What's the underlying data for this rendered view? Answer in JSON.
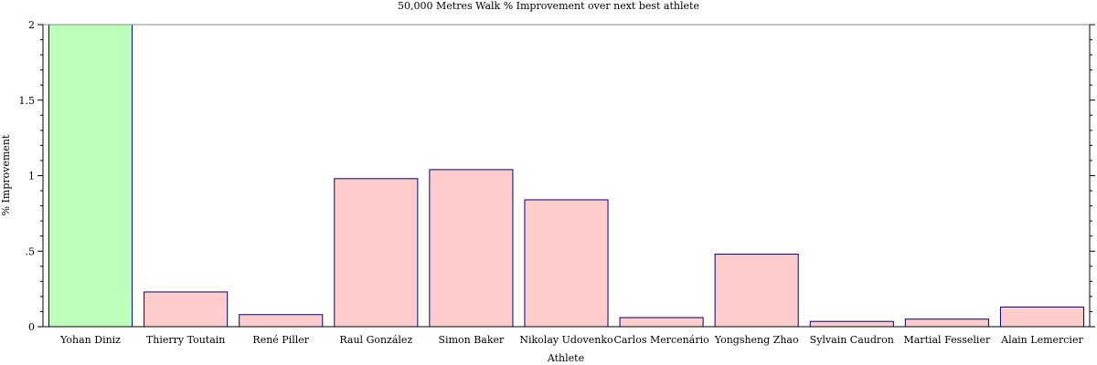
{
  "chart_data": {
    "type": "bar",
    "title": "50,000 Metres Walk % Improvement over next best athlete",
    "xlabel": "Athlete",
    "ylabel": "% Improvement",
    "ylim": [
      0,
      2
    ],
    "yticks": [
      {
        "value": 0,
        "label": "0"
      },
      {
        "value": 0.5,
        "label": ".5"
      },
      {
        "value": 1,
        "label": "1"
      },
      {
        "value": 1.5,
        "label": "1.5"
      },
      {
        "value": 2,
        "label": "2"
      }
    ],
    "categories": [
      "Yohan Diniz",
      "Thierry Toutain",
      "René Piller",
      "Raul González",
      "Simon Baker",
      "Nikolay Udovenko",
      "Carlos Mercenário",
      "Yongsheng Zhao",
      "Sylvain Caudron",
      "Martial Fesselier",
      "Alain Lemercier"
    ],
    "values": [
      2.0,
      0.23,
      0.08,
      0.98,
      1.04,
      0.84,
      0.06,
      0.48,
      0.035,
      0.05,
      0.13
    ],
    "highlight_index": 0,
    "colors": {
      "highlight_fill": "#bbffbb",
      "bar_fill": "#ffcccc",
      "bar_stroke": "#000080"
    },
    "grid": false
  }
}
